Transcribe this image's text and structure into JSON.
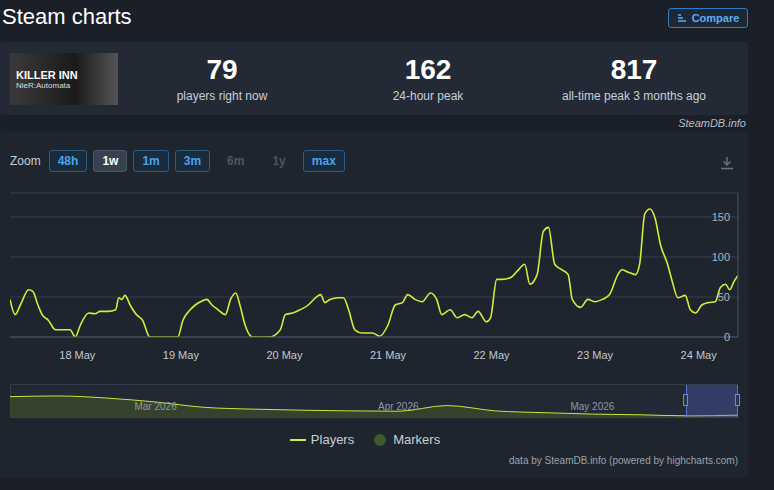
{
  "header": {
    "title": "Steam charts",
    "button": "Compare"
  },
  "stats": {
    "thumbnail": [
      "KILLER INN",
      "NieR:Automata"
    ],
    "items": [
      {
        "value": 79,
        "label": "players right now"
      },
      {
        "value": 162,
        "label": "24-hour peak"
      },
      {
        "value": 817,
        "label": "all-time peak 3 months ago"
      }
    ],
    "source": "SteamDB.info"
  },
  "zoom": {
    "label": "Zoom",
    "buttons": [
      "48h",
      "1w",
      "1m",
      "3m",
      "6m",
      "1y",
      "max"
    ],
    "selected": "1w",
    "disabled": [
      "6m",
      "1y"
    ]
  },
  "chart_data": [
    {
      "type": "line",
      "x": [
        17.35,
        17.4,
        17.45,
        17.53,
        17.57,
        17.62,
        17.66,
        17.72,
        17.79,
        17.86,
        17.93,
        17.98,
        18.03,
        18.11,
        18.17,
        18.22,
        18.3,
        18.37,
        18.4,
        18.43,
        18.46,
        18.51,
        18.57,
        18.63,
        18.7,
        18.8,
        18.9,
        18.97,
        19.02,
        19.09,
        19.14,
        19.19,
        19.25,
        19.3,
        19.36,
        19.43,
        19.48,
        19.53,
        19.57,
        19.62,
        19.69,
        19.79,
        19.86,
        19.96,
        20.01,
        20.08,
        20.15,
        20.23,
        20.3,
        20.35,
        20.39,
        20.44,
        20.52,
        20.57,
        20.62,
        20.68,
        20.75,
        20.85,
        20.92,
        21.0,
        21.07,
        21.14,
        21.19,
        21.26,
        21.33,
        21.41,
        21.47,
        21.52,
        21.6,
        21.67,
        21.74,
        21.81,
        21.87,
        21.95,
        21.99,
        22.05,
        22.1,
        22.18,
        22.26,
        22.32,
        22.37,
        22.44,
        22.5,
        22.55,
        22.61,
        22.68,
        22.74,
        22.78,
        22.86,
        22.93,
        23.0,
        23.07,
        23.14,
        23.22,
        23.26,
        23.32,
        23.39,
        23.43,
        23.48,
        23.53,
        23.58,
        23.63,
        23.7,
        23.74,
        23.8,
        23.87,
        23.92,
        23.97,
        24.03,
        24.09,
        24.16,
        24.21,
        24.26,
        24.3,
        24.34,
        24.38
      ],
      "series": [
        {
          "name": "Players",
          "color": "#d4ec3a",
          "type": "line",
          "values": [
            47,
            28,
            40,
            59,
            57,
            40,
            28,
            21,
            9,
            9,
            9,
            0,
            15,
            30,
            29,
            32,
            32,
            34,
            49,
            47,
            52,
            40,
            28,
            21,
            0,
            0,
            0,
            0,
            21,
            34,
            40,
            44,
            47,
            40,
            34,
            28,
            47,
            55,
            40,
            15,
            0,
            0,
            0,
            9,
            28,
            30,
            34,
            40,
            49,
            53,
            43,
            47,
            49,
            49,
            34,
            9,
            5,
            5,
            1,
            15,
            40,
            43,
            53,
            47,
            44,
            55,
            47,
            28,
            34,
            24,
            28,
            24,
            32,
            19,
            24,
            72,
            72,
            74,
            84,
            91,
            66,
            78,
            132,
            137,
            91,
            84,
            78,
            47,
            37,
            47,
            44,
            47,
            53,
            78,
            84,
            81,
            78,
            91,
            154,
            160,
            148,
            116,
            91,
            72,
            49,
            52,
            34,
            30,
            40,
            43,
            44,
            62,
            66,
            59,
            69,
            77
          ]
        },
        {
          "name": "Markers",
          "color": "#3e5a2a",
          "type": "scatter",
          "marker": "circle",
          "values": [
            null,
            null,
            null,
            null,
            null,
            null,
            null,
            null,
            null,
            null,
            null,
            null,
            null,
            null,
            null,
            null,
            null,
            null,
            null,
            null,
            null,
            null,
            null,
            null,
            null,
            null,
            null,
            null,
            null,
            null,
            null,
            null,
            null,
            null,
            null,
            null,
            null,
            null,
            null,
            null,
            null,
            null,
            null,
            null,
            null,
            null,
            null,
            null,
            null,
            null,
            null,
            null,
            null,
            null,
            null,
            null,
            null,
            null,
            null,
            null,
            null,
            null,
            null,
            null,
            null,
            null,
            null,
            null,
            null,
            null,
            null,
            null,
            null,
            null,
            null,
            null,
            null,
            null,
            null,
            null,
            null,
            null,
            null,
            null,
            null,
            null,
            null,
            null,
            null,
            null,
            null,
            null,
            null,
            null,
            null,
            null,
            null,
            null,
            null,
            null,
            null,
            null,
            null,
            null,
            null,
            null,
            null,
            null,
            null,
            null,
            null,
            null,
            null,
            null,
            null,
            null
          ]
        }
      ],
      "xlim": [
        17.35,
        24.38
      ],
      "xticks": [
        {
          "value": 18,
          "label": "18 May"
        },
        {
          "value": 19,
          "label": "19 May"
        },
        {
          "value": 20,
          "label": "20 May"
        },
        {
          "value": 21,
          "label": "21 May"
        },
        {
          "value": 22,
          "label": "22 May"
        },
        {
          "value": 23,
          "label": "23 May"
        },
        {
          "value": 24,
          "label": "24 May"
        }
      ],
      "ylim": [
        0,
        180
      ],
      "yticks": [
        0,
        50,
        100,
        150
      ],
      "grid": true,
      "legend": "bottom"
    },
    {
      "type": "area",
      "categories": [
        null,
        null,
        null,
        "Mar 2026",
        null,
        null,
        null,
        null,
        "Apr 2026",
        null,
        null,
        null,
        "May 2026",
        null,
        null,
        null
      ],
      "values": [
        600,
        620,
        560,
        450,
        300,
        250,
        220,
        200,
        190,
        350,
        200,
        150,
        110,
        90,
        60,
        80
      ],
      "color": "#c6e83a",
      "ylim": [
        0,
        900
      ],
      "tick_labels": "x"
    }
  ],
  "footer": "data by SteamDB.info (powered by highcharts.com)"
}
